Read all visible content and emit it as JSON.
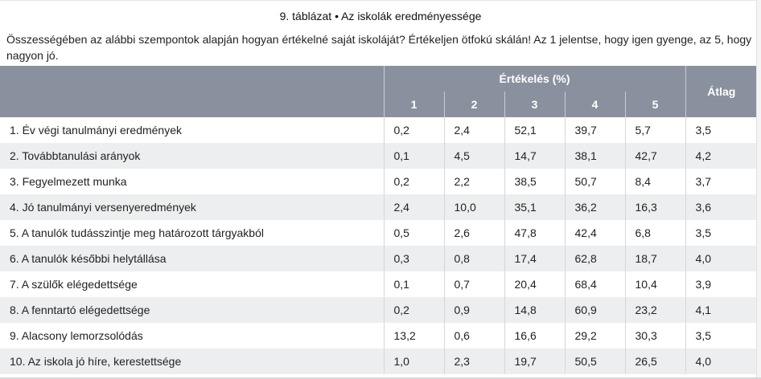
{
  "caption": "9. táblázat • Az iskolák eredményessége",
  "question": "Összességében az alábbi szempontok alapján hogyan értékelné saját iskoláját? Értékeljen ötfokú skálán! Az 1 jelentse, hogy igen gyenge, az 5, hogy nagyon jó.",
  "table": {
    "group_header": "Értékelés (%)",
    "avg_header": "Átlag",
    "columns": [
      "1",
      "2",
      "3",
      "4",
      "5"
    ],
    "rows": [
      {
        "label": "1. Év végi tanulmányi eredmények",
        "values": [
          "0,2",
          "2,4",
          "52,1",
          "39,7",
          "5,7"
        ],
        "avg": "3,5"
      },
      {
        "label": "2. Továbbtanulási arányok",
        "values": [
          "0,1",
          "4,5",
          "14,7",
          "38,1",
          "42,7"
        ],
        "avg": "4,2"
      },
      {
        "label": "3. Fegyelmezett munka",
        "values": [
          "0,2",
          "2,2",
          "38,5",
          "50,7",
          "8,4"
        ],
        "avg": "3,7"
      },
      {
        "label": "4. Jó tanulmányi versenyeredmények",
        "values": [
          "2,4",
          "10,0",
          "35,1",
          "36,2",
          "16,3"
        ],
        "avg": "3,6"
      },
      {
        "label": "5. A tanulók tudásszintje meg határozott tárgyakból",
        "values": [
          "0,5",
          "2,6",
          "47,8",
          "42,4",
          "6,8"
        ],
        "avg": "3,5"
      },
      {
        "label": "6. A tanulók későbbi helytállása",
        "values": [
          "0,3",
          "0,8",
          "17,4",
          "62,8",
          "18,7"
        ],
        "avg": "4,0"
      },
      {
        "label": "7. A szülők elégedettsége",
        "values": [
          "0,1",
          "0,7",
          "20,4",
          "68,4",
          "10,4"
        ],
        "avg": "3,9"
      },
      {
        "label": "8. A fenntartó elégedettsége",
        "values": [
          "0,2",
          "0,9",
          "14,8",
          "60,9",
          "23,2"
        ],
        "avg": "4,1"
      },
      {
        "label": "9. Alacsony lemorzsolódás",
        "values": [
          "13,2",
          "0,6",
          "16,6",
          "29,2",
          "30,3"
        ],
        "avg": "3,5"
      },
      {
        "label": "10. Az iskola jó híre, kerestettsége",
        "values": [
          "1,0",
          "2,3",
          "19,7",
          "50,5",
          "26,5"
        ],
        "avg": "4,0"
      }
    ]
  }
}
